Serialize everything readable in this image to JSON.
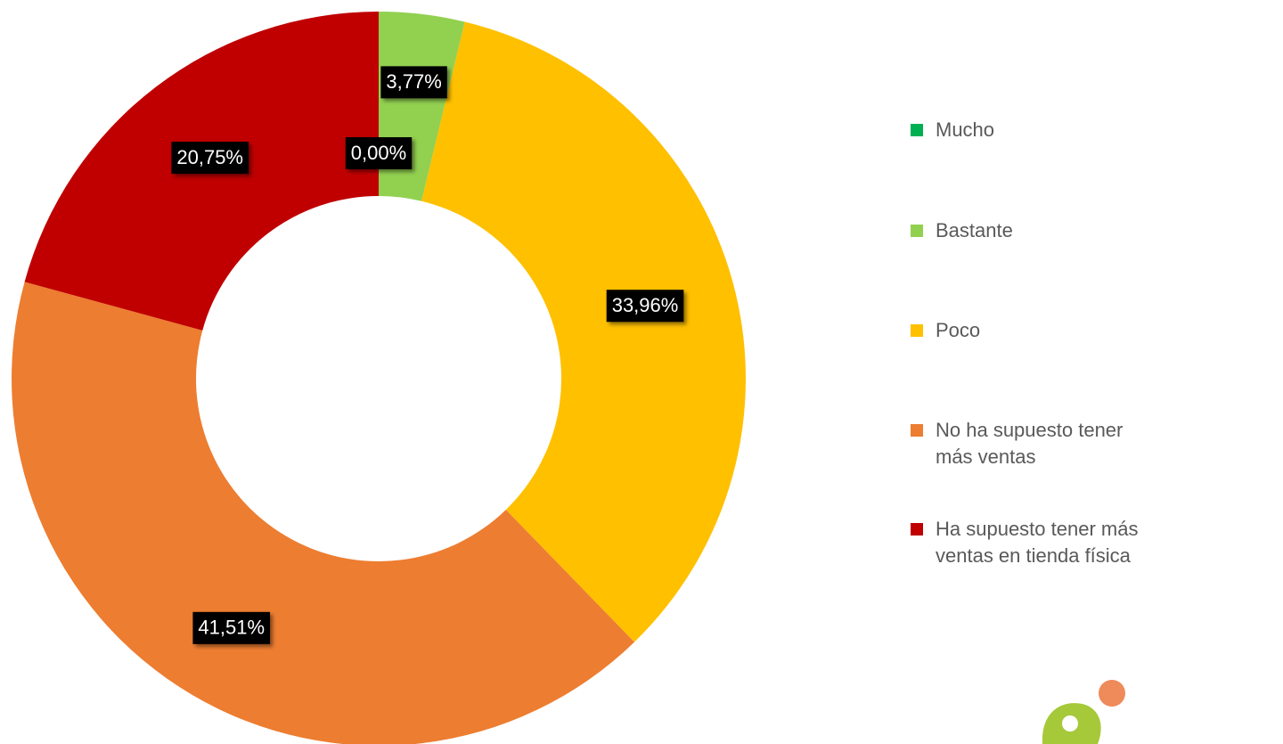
{
  "chart_data": {
    "type": "donut",
    "categories": [
      "Mucho",
      "Bastante",
      "Poco",
      "No ha supuesto tener más ventas",
      "Ha supuesto tener más ventas en tienda física"
    ],
    "values": [
      0,
      3.77,
      33.96,
      41.51,
      20.75
    ],
    "value_labels": [
      "0,00%",
      "3,77%",
      "33,96%",
      "41,51%",
      "20,75%"
    ],
    "colors": [
      "#00b050",
      "#92d050",
      "#ffc000",
      "#ed7d31",
      "#c00000"
    ],
    "legend": "right"
  }
}
